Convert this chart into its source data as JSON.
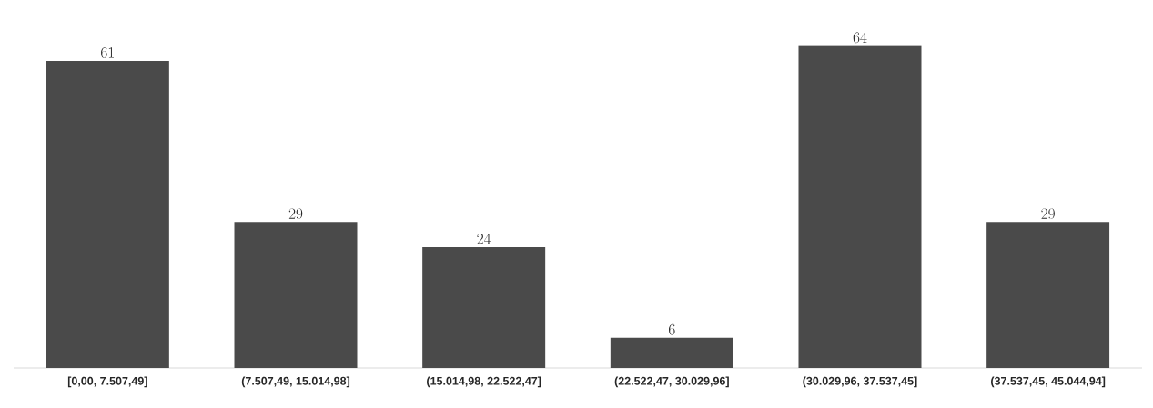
{
  "chart_data": {
    "type": "bar",
    "categories": [
      "[0,00, 7.507,49]",
      "(7.507,49, 15.014,98]",
      "(15.014,98, 22.522,47]",
      "(22.522,47, 30.029,96]",
      "(30.029,96, 37.537,45]",
      "(37.537,45, 45.044,94]"
    ],
    "values": [
      61,
      29,
      24,
      6,
      64,
      29
    ],
    "color": "#4a4a4a",
    "data_labels": true
  }
}
